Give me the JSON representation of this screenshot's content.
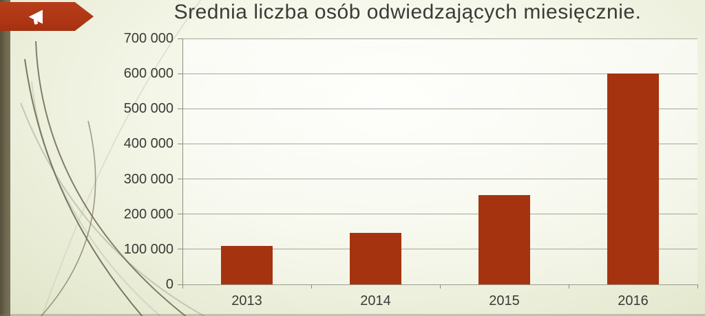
{
  "slide": {
    "title": "Srednia liczba osób odwiedzających miesięcznie.",
    "banner_color": "#ad3513",
    "sidebar_color": "#6e6851",
    "background_color": "#edf0dc",
    "title_color": "#3b3b36",
    "megaphone_icon": "megaphone-icon"
  },
  "chart_data": {
    "type": "bar",
    "title": "Srednia liczba osób odwiedzających miesięcznie.",
    "categories": [
      "2013",
      "2014",
      "2015",
      "2016"
    ],
    "values": [
      110000,
      147000,
      255000,
      600000
    ],
    "xlabel": "",
    "ylabel": "",
    "ylim": [
      0,
      700000
    ],
    "ytick_step": 100000,
    "ytick_labels": [
      "0",
      "100 000",
      "200 000",
      "300 000",
      "400 000",
      "500 000",
      "600 000",
      "700 000"
    ],
    "grid": true,
    "legend": false,
    "bar_color": "#a5330f",
    "gridline_color": "#a6a699",
    "axis_color": "#8d8d80"
  }
}
